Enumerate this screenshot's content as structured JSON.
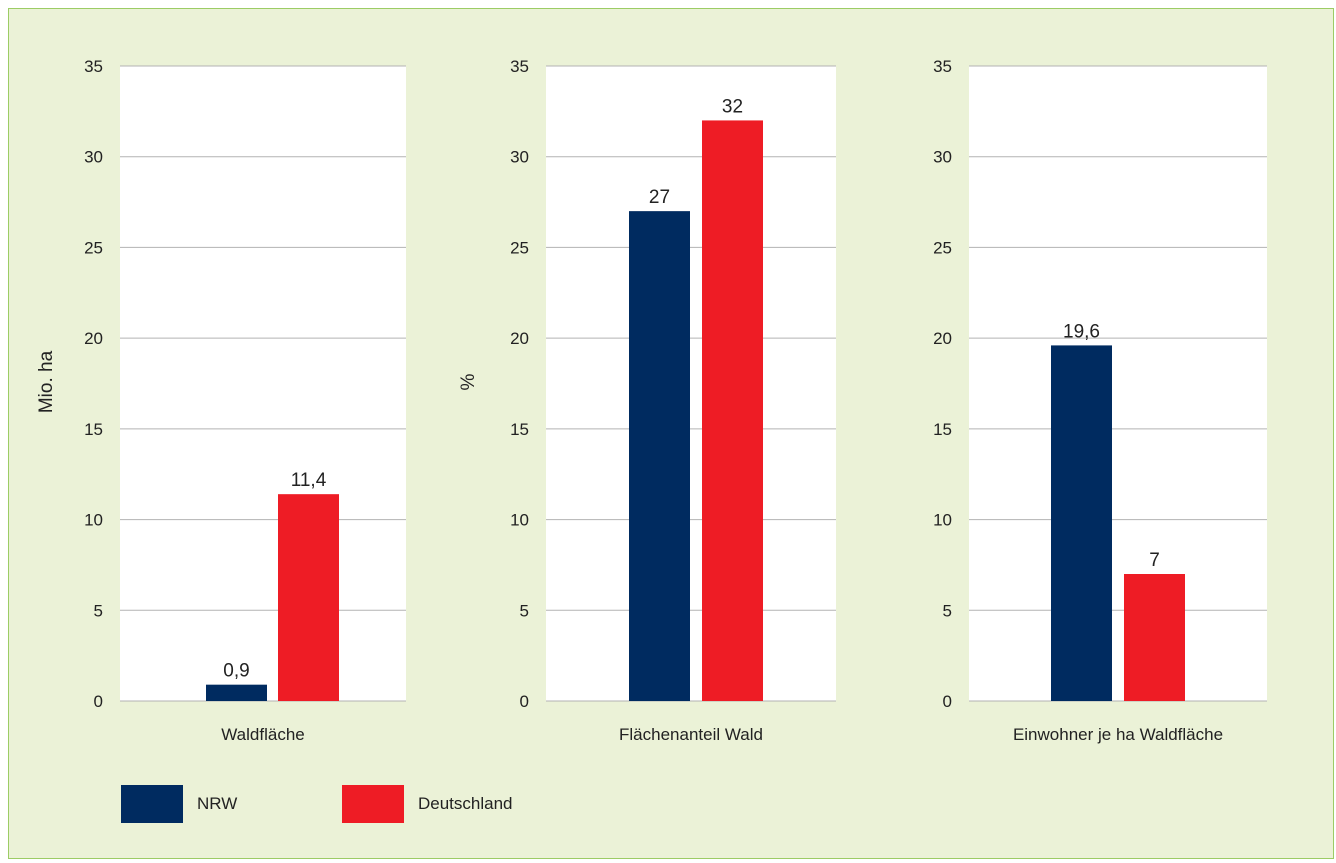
{
  "colors": {
    "background": "#ebf2d7",
    "border": "#9ccc65",
    "plot_background": "#ffffff",
    "grid": "#b3b3b3",
    "nrw": "#002b60",
    "deutschland": "#ee1c25"
  },
  "legend": {
    "items": [
      {
        "label": "NRW",
        "color": "#002b60"
      },
      {
        "label": "Deutschland",
        "color": "#ee1c25"
      }
    ],
    "placement": "bottom-left"
  },
  "chart_data": [
    {
      "type": "bar",
      "categories": [
        "Waldfläche"
      ],
      "series": [
        {
          "name": "NRW",
          "values": [
            0.9
          ],
          "labels": [
            "0,9"
          ]
        },
        {
          "name": "Deutschland",
          "values": [
            11.4
          ],
          "labels": [
            "11,4"
          ]
        }
      ],
      "xlabel": "",
      "ylabel": "Mio. ha",
      "ylim": [
        0,
        35
      ],
      "yticks": [
        "0",
        "5",
        "10",
        "15",
        "20",
        "25",
        "30",
        "35"
      ],
      "grid": true
    },
    {
      "type": "bar",
      "categories": [
        "Flächenanteil Wald"
      ],
      "series": [
        {
          "name": "NRW",
          "values": [
            27
          ],
          "labels": [
            "27"
          ]
        },
        {
          "name": "Deutschland",
          "values": [
            32
          ],
          "labels": [
            "32"
          ]
        }
      ],
      "xlabel": "",
      "ylabel": "%",
      "ylim": [
        0,
        35
      ],
      "yticks": [
        "0",
        "5",
        "10",
        "15",
        "20",
        "25",
        "30",
        "35"
      ],
      "grid": true
    },
    {
      "type": "bar",
      "categories": [
        "Einwohner je ha Waldfläche"
      ],
      "series": [
        {
          "name": "NRW",
          "values": [
            19.6
          ],
          "labels": [
            "19,6"
          ]
        },
        {
          "name": "Deutschland",
          "values": [
            7
          ],
          "labels": [
            "7"
          ]
        }
      ],
      "xlabel": "",
      "ylabel": "",
      "ylim": [
        0,
        35
      ],
      "yticks": [
        "0",
        "5",
        "10",
        "15",
        "20",
        "25",
        "30",
        "35"
      ],
      "grid": true
    }
  ]
}
